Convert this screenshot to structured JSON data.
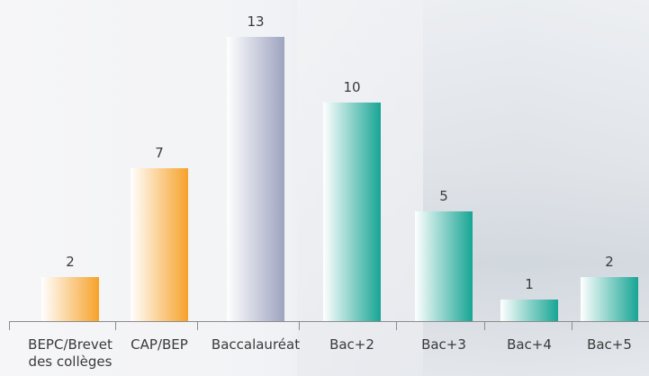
{
  "chart_data": {
    "type": "bar",
    "categories": [
      "BEPC/Brevet des collèges",
      "CAP/BEP",
      "Baccalauréat",
      "Bac+2",
      "Bac+3",
      "Bac+4",
      "Bac+5"
    ],
    "values": [
      2,
      7,
      13,
      10,
      5,
      1,
      2
    ],
    "colors": [
      "#f6a22a",
      "#f6a22a",
      "#9ea3bf",
      "#17a594",
      "#17a594",
      "#17a594",
      "#17a594"
    ]
  }
}
